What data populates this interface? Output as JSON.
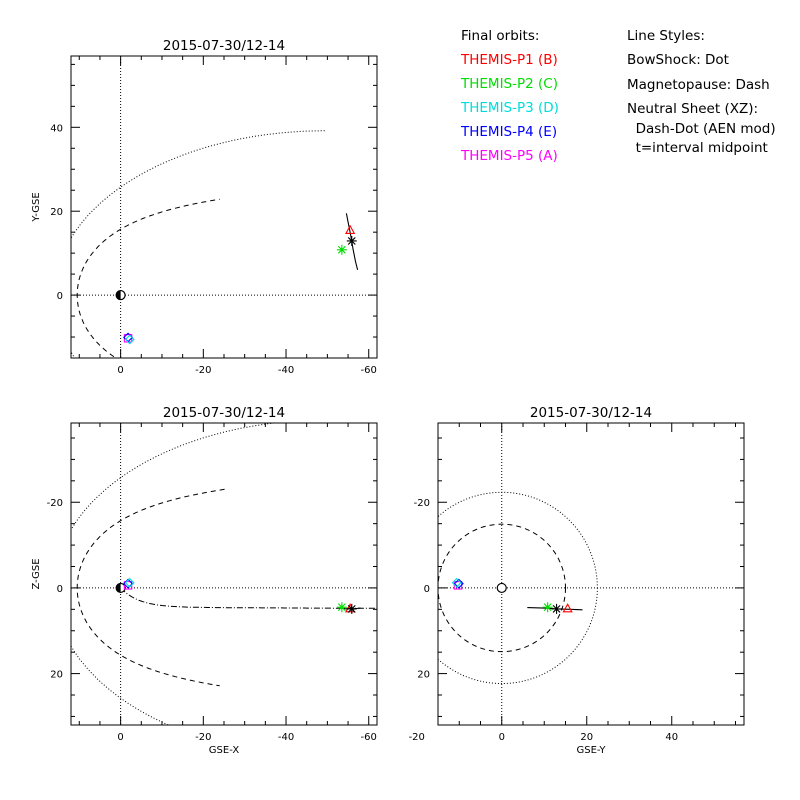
{
  "chart_data": [
    {
      "type": "scatter",
      "panel": "XY",
      "title": "2015-07-30/12-14",
      "xlabel": "",
      "ylabel": "Y-GSE",
      "xlim": [
        12,
        -62
      ],
      "ylim": [
        57,
        -15
      ],
      "xticks": [
        0,
        -20,
        -40,
        -60
      ],
      "yticks": [
        0,
        20,
        40
      ],
      "points": [
        {
          "probe": "P1",
          "marker": "triangle",
          "color": "#ff0000",
          "x": -55.5,
          "y": 15.5
        },
        {
          "probe": "P2",
          "marker": "asterisk",
          "color": "#00dd00",
          "x": -53.5,
          "y": 10.8
        },
        {
          "probe": "P5",
          "marker": "square",
          "color": "#ff00ff",
          "x": -1.8,
          "y": -10.3
        },
        {
          "probe": "P4",
          "marker": "diamond",
          "color": "#0000ff",
          "x": -1.8,
          "y": -10.1
        },
        {
          "probe": "P3",
          "marker": "diamond",
          "color": "#00dddd",
          "x": -2.2,
          "y": -10.6
        },
        {
          "probe": "Neutral sheet",
          "marker": "asterisk",
          "color": "#000000",
          "x": -55.9,
          "y": 12.9
        }
      ],
      "track": [
        [
          -57.3,
          6
        ],
        [
          -56.8,
          8
        ],
        [
          -56.2,
          11
        ],
        [
          -55.9,
          12.9
        ],
        [
          -55.5,
          15
        ],
        [
          -54.9,
          18
        ],
        [
          -54.6,
          19.5
        ]
      ]
    },
    {
      "type": "scatter",
      "panel": "XZ",
      "title": "2015-07-30/12-14",
      "xlabel": "GSE-X",
      "ylabel": "Z-GSE",
      "xlim": [
        12,
        -62
      ],
      "ylim": [
        -38.5,
        32
      ],
      "xticks": [
        0,
        -20,
        -40,
        -60
      ],
      "yticks": [
        20,
        0,
        -20
      ],
      "points": [
        {
          "probe": "P1",
          "marker": "triangle",
          "color": "#ff0000",
          "x": -55.5,
          "y": 4.8
        },
        {
          "probe": "P2",
          "marker": "asterisk",
          "color": "#00dd00",
          "x": -53.5,
          "y": 4.5
        },
        {
          "probe": "P5",
          "marker": "square",
          "color": "#ff00ff",
          "x": -1.8,
          "y": -0.6
        },
        {
          "probe": "P4",
          "marker": "diamond",
          "color": "#0000ff",
          "x": -1.8,
          "y": -1.0
        },
        {
          "probe": "P3",
          "marker": "diamond",
          "color": "#00dddd",
          "x": -2.2,
          "y": -1.2
        },
        {
          "probe": "Neutral sheet",
          "marker": "asterisk",
          "color": "#000000",
          "x": -55.9,
          "y": 4.9
        }
      ],
      "track": [
        [
          -58,
          4.7
        ],
        [
          -57,
          4.8
        ],
        [
          -55.9,
          4.9
        ],
        [
          -55,
          4.9
        ],
        [
          -53.5,
          4.8
        ]
      ]
    },
    {
      "type": "scatter",
      "panel": "YZ",
      "title": "2015-07-30/12-14",
      "xlabel": "GSE-Y",
      "ylabel": "",
      "xlim": [
        -15,
        57
      ],
      "ylim": [
        -38.5,
        32
      ],
      "xticks": [
        -20,
        0,
        20,
        40
      ],
      "yticks": [
        20,
        0,
        -20
      ],
      "points": [
        {
          "probe": "P1",
          "marker": "triangle",
          "color": "#ff0000",
          "x": 15.5,
          "y": 4.8
        },
        {
          "probe": "P2",
          "marker": "asterisk",
          "color": "#00dd00",
          "x": 10.8,
          "y": 4.5
        },
        {
          "probe": "P5",
          "marker": "square",
          "color": "#ff00ff",
          "x": -10.3,
          "y": -0.6
        },
        {
          "probe": "P4",
          "marker": "diamond",
          "color": "#0000ff",
          "x": -10.1,
          "y": -1.0
        },
        {
          "probe": "P3",
          "marker": "diamond",
          "color": "#00dddd",
          "x": -10.6,
          "y": -1.2
        },
        {
          "probe": "Neutral sheet",
          "marker": "asterisk",
          "color": "#000000",
          "x": 12.9,
          "y": 4.9
        }
      ],
      "track": [
        [
          6,
          4.6
        ],
        [
          10,
          4.7
        ],
        [
          12.9,
          4.9
        ],
        [
          16,
          5.0
        ],
        [
          19,
          5.1
        ]
      ]
    }
  ],
  "legend": {
    "orbits_title": "Final orbits:",
    "probes": [
      {
        "label": "THEMIS-P1 (B)",
        "color": "#ff0000"
      },
      {
        "label": "THEMIS-P2 (C)",
        "color": "#00dd00"
      },
      {
        "label": "THEMIS-P3 (D)",
        "color": "#00dddd"
      },
      {
        "label": "THEMIS-P4 (E)",
        "color": "#0000ff"
      },
      {
        "label": "THEMIS-P5 (A)",
        "color": "#ff00ff"
      }
    ],
    "styles_title": "Line Styles:",
    "styles": [
      "BowShock: Dot",
      "Magnetopause: Dash",
      "Neutral Sheet (XZ):",
      "  Dash-Dot (AEN mod)",
      "  t=interval midpoint"
    ]
  }
}
